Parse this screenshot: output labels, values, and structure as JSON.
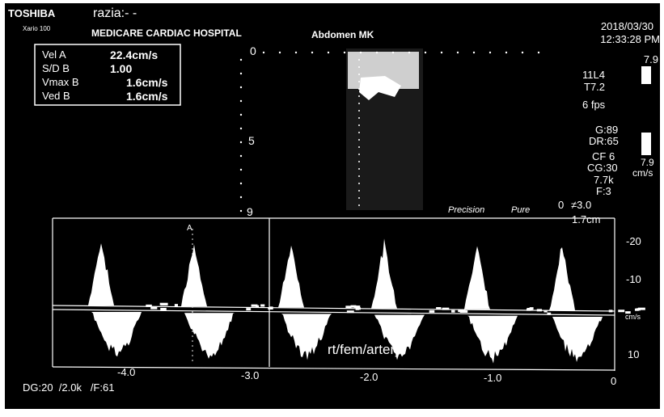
{
  "header": {
    "brand": "TOSHIBA",
    "model": "Xario 100",
    "patient": "razia:- -",
    "hospital": "MEDICARE CARDIAC HOSPITAL",
    "exam": "Abdomen MK",
    "date": "2018/03/30",
    "time": "12:33:28 PM"
  },
  "measurements": [
    [
      "Vel A",
      "22.4cm/s"
    ],
    [
      "S/D B",
      "1.00"
    ],
    [
      "Vmax B",
      "1.6cm/s"
    ],
    [
      "Ved B",
      "1.6cm/s"
    ]
  ],
  "depth_scale": [
    "0",
    "5",
    "9"
  ],
  "parameters": {
    "top_scale": "7.9",
    "probe": "11L4",
    "tissue": "T7.2",
    "frame_rate": "6 fps",
    "gain": "G:89",
    "dynamic_range": "DR:65",
    "color_frequency": "CF 6",
    "color_gain": "CG:30",
    "prf": "7.7k",
    "filter": "F:3",
    "angle_zero": "0",
    "angle": "≠3.0",
    "gate": "1.7cm",
    "color_scale": "7.9",
    "color_unit": "cm/s"
  },
  "modes": [
    "Precision",
    "Pure"
  ],
  "spectrum": {
    "velocity_labels": [
      "-20",
      "-10",
      "cm/s",
      "10"
    ],
    "time_labels": [
      "-4.0",
      "-3.0",
      "-2.0",
      "-1.0",
      "0"
    ],
    "marker": "A",
    "annotation": "rt/fem/artery",
    "footer": "DG:20  /2.0k   /F:61"
  }
}
